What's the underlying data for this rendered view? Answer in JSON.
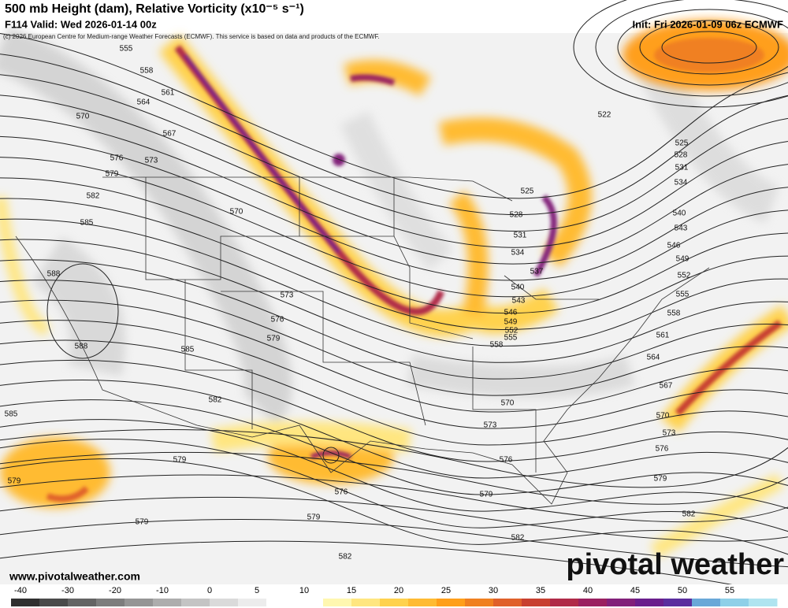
{
  "header": {
    "title": "500 mb Height (dam), Relative Vorticity (x10⁻⁵ s⁻¹)",
    "valid": "F114 Valid: Wed 2026-01-14 00z",
    "init": "Init: Fri 2026-01-09 06z ECMWF",
    "credit": "(c) 2026 European Centre for Medium-range Weather Forecasts (ECMWF). This service is based on data and products of the ECMWF."
  },
  "footer": {
    "website": "www.pivotalweather.com",
    "logo": "pivotal weather"
  },
  "contour_labels": [
    "555",
    "558",
    "561",
    "564",
    "567",
    "570",
    "573",
    "576",
    "579",
    "582",
    "585",
    "588",
    "588",
    "585",
    "582",
    "579",
    "576",
    "573",
    "570",
    "585",
    "579",
    "579",
    "579",
    "576",
    "579",
    "582",
    "582",
    "579",
    "576",
    "573",
    "570",
    "579",
    "576",
    "573",
    "570",
    "567",
    "564",
    "561",
    "558",
    "555",
    "552",
    "549",
    "546",
    "543",
    "540",
    "534",
    "531",
    "528",
    "525",
    "522",
    "525",
    "528",
    "531",
    "534",
    "537",
    "540",
    "543",
    "546",
    "549",
    "552",
    "555",
    "558",
    "582"
  ],
  "colorbar": {
    "ticks": [
      -40,
      -30,
      -20,
      -10,
      0,
      5,
      10,
      15,
      20,
      25,
      30,
      35,
      40,
      45,
      50,
      55
    ],
    "colors": [
      "#303030",
      "#4a4a4a",
      "#646464",
      "#7d7d7d",
      "#959595",
      "#adadad",
      "#c4c4c4",
      "#dadada",
      "#ececec",
      "#ffffff",
      "#ffffff",
      "#fff7b0",
      "#ffe680",
      "#ffd24d",
      "#ffbb33",
      "#ff9f1a",
      "#f08020",
      "#e0602a",
      "#c84030",
      "#b02a48",
      "#9a2060",
      "#82207a",
      "#6a1e8c",
      "#5a2d9e",
      "#6aa8d8",
      "#8fd0e8",
      "#b0e4f0"
    ]
  }
}
